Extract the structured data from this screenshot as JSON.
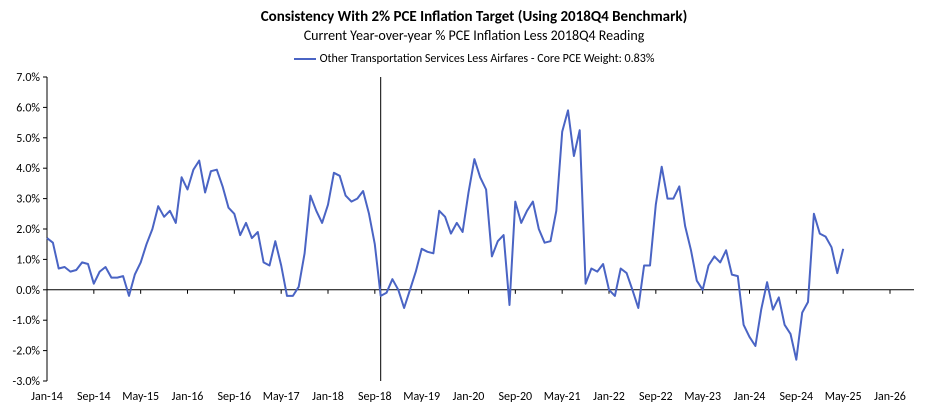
{
  "chart_data": {
    "type": "line",
    "title": "Consistency With 2% PCE Inflation Target (Using 2018Q4 Benchmark)",
    "subtitle": "Current Year-over-year % PCE Inflation Less 2018Q4 Reading",
    "legend_position": "top-center",
    "grid": false,
    "ylim": [
      -3.0,
      7.0
    ],
    "y_ticks": [
      "7.0%",
      "6.0%",
      "5.0%",
      "4.0%",
      "3.0%",
      "2.0%",
      "1.0%",
      "0.0%",
      "-1.0%",
      "-2.0%",
      "-3.0%"
    ],
    "x_ticks": [
      "Jan-14",
      "Sep-14",
      "May-15",
      "Jan-16",
      "Sep-16",
      "May-17",
      "Jan-18",
      "Sep-18",
      "May-19",
      "Jan-20",
      "Sep-20",
      "May-21",
      "Jan-22",
      "Sep-22",
      "May-23",
      "Jan-24",
      "Sep-24",
      "May-25",
      "Jan-26"
    ],
    "x_start": "Jan-14",
    "vline_at": "Oct-18",
    "colors": {
      "series": "#4a64c4",
      "axis": "#000000",
      "vline": "#000000"
    },
    "series": [
      {
        "name": "Other Transportation Services Less Airfares - Core PCE Weight: 0.83%",
        "values": [
          1.7,
          1.55,
          0.7,
          0.75,
          0.6,
          0.65,
          0.9,
          0.85,
          0.2,
          0.6,
          0.75,
          0.4,
          0.4,
          0.45,
          -0.2,
          0.5,
          0.9,
          1.5,
          2.0,
          2.75,
          2.4,
          2.6,
          2.2,
          3.7,
          3.3,
          3.95,
          4.25,
          3.2,
          3.9,
          3.95,
          3.4,
          2.7,
          2.5,
          1.8,
          2.2,
          1.7,
          1.9,
          0.9,
          0.8,
          1.6,
          0.8,
          -0.2,
          -0.2,
          0.1,
          1.2,
          3.1,
          2.6,
          2.2,
          2.8,
          3.85,
          3.75,
          3.1,
          2.9,
          3.0,
          3.25,
          2.5,
          1.5,
          -0.2,
          -0.1,
          0.35,
          0.0,
          -0.6,
          0.0,
          0.6,
          1.35,
          1.25,
          1.2,
          2.6,
          2.4,
          1.85,
          2.2,
          1.9,
          3.2,
          4.3,
          3.7,
          3.3,
          1.1,
          1.6,
          1.8,
          -0.5,
          2.9,
          2.2,
          2.6,
          2.9,
          2.0,
          1.55,
          1.6,
          2.6,
          5.2,
          5.9,
          4.4,
          5.25,
          0.2,
          0.7,
          0.6,
          0.85,
          0.0,
          -0.2,
          0.7,
          0.55,
          0.0,
          -0.6,
          0.8,
          0.8,
          2.8,
          4.05,
          3.0,
          3.0,
          3.4,
          2.1,
          1.3,
          0.3,
          0.0,
          0.8,
          1.1,
          0.9,
          1.3,
          0.5,
          0.45,
          -1.15,
          -1.55,
          -1.85,
          -0.65,
          0.25,
          -0.65,
          -0.25,
          -1.15,
          -1.45,
          -2.3,
          -0.75,
          -0.4,
          2.5,
          1.85,
          1.75,
          1.4,
          0.55,
          1.35
        ]
      }
    ]
  }
}
